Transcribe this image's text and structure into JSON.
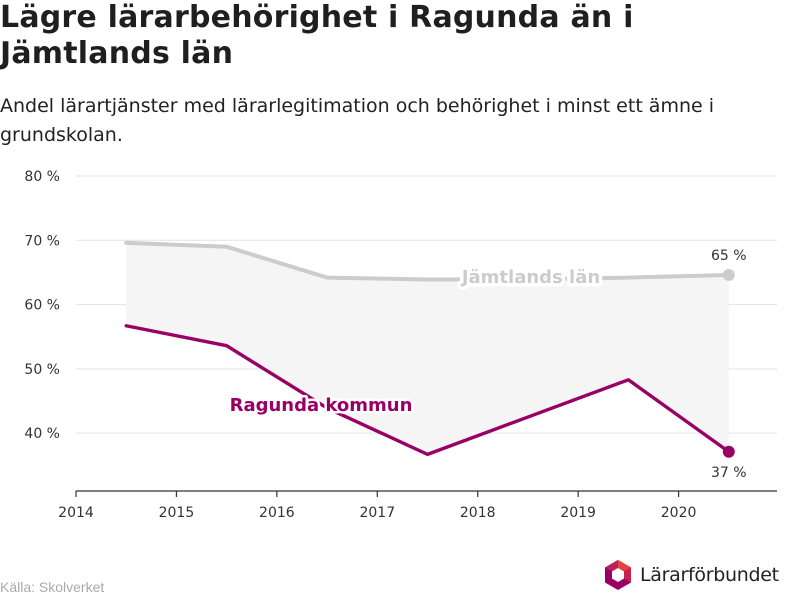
{
  "title": "Lägre lärarbehörighet i Ragunda än i Jämtlands län",
  "subtitle": "Andel lärartjänster med lärarlegitimation och behörighet i minst ett ämne i grundskolan.",
  "source": "Källa: Skolverket",
  "brand": "Lärarförbundet",
  "colors": {
    "jamtland": "#cccccc",
    "ragunda": "#990066",
    "band": "#f5f5f5"
  },
  "chart_data": {
    "type": "line",
    "title": "Lägre lärarbehörighet i Ragunda än i Jämtlands län",
    "subtitle": "Andel lärartjänster med lärarlegitimation och behörighet i minst ett ämne i grundskolan.",
    "xlim": [
      2014,
      2020.98
    ],
    "ylim": [
      31,
      80
    ],
    "x_ticks": [
      2014,
      2015,
      2016,
      2017,
      2018,
      2019,
      2020
    ],
    "y_ticks": [
      {
        "value": 40,
        "label": "40 %"
      },
      {
        "value": 50,
        "label": "50 %"
      },
      {
        "value": 60,
        "label": "60 %"
      },
      {
        "value": 70,
        "label": "70 %"
      },
      {
        "value": 80,
        "label": "80 %"
      }
    ],
    "grid": true,
    "x": [
      2014.5,
      2015.5,
      2016.5,
      2017.5,
      2018.5,
      2019.5,
      2020.5
    ],
    "series": [
      {
        "name": "Jämtlands län",
        "key": "jamtland",
        "values": [
          69.6,
          69.0,
          64.2,
          63.9,
          63.9,
          64.2,
          64.6
        ],
        "end_label": "65 %"
      },
      {
        "name": "Ragunda kommun",
        "key": "ragunda",
        "values": [
          56.7,
          53.6,
          43.9,
          36.7,
          42.5,
          48.3,
          37.1
        ],
        "end_label": "37 %"
      }
    ]
  }
}
